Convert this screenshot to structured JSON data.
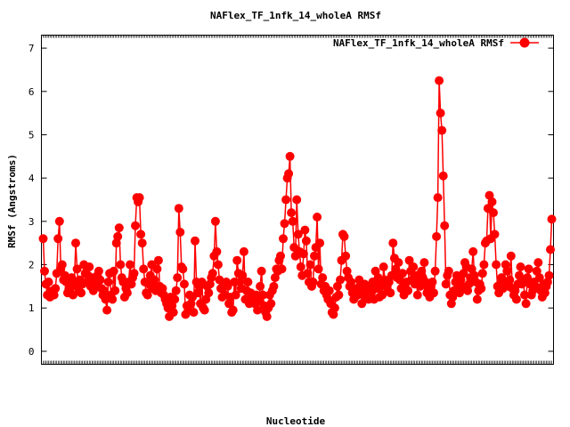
{
  "chart_data": {
    "type": "line",
    "title": "NAFlex_TF_1nfk_14_wholeA RMSf",
    "xlabel": "Nucleotide",
    "ylabel": "RMSf (Angstroms)",
    "ylim": [
      -0.3,
      7.3
    ],
    "yticks": [
      0,
      1,
      2,
      3,
      4,
      5,
      6,
      7
    ],
    "grid": false,
    "legend_position": "top-right",
    "series": [
      {
        "name": "NAFlex_TF_1nfk_14_wholeA RMSf",
        "color": "#ff0000",
        "marker": "circle",
        "values": [
          2.6,
          1.85,
          1.55,
          1.3,
          1.6,
          1.25,
          1.35,
          1.4,
          1.3,
          1.45,
          1.8,
          2.6,
          3.0,
          1.9,
          2.0,
          1.65,
          1.75,
          1.6,
          1.35,
          1.45,
          1.55,
          1.7,
          1.3,
          1.6,
          2.5,
          1.9,
          1.45,
          1.65,
          1.35,
          1.55,
          2.0,
          1.8,
          1.6,
          1.75,
          1.95,
          1.5,
          1.7,
          1.4,
          1.6,
          1.55,
          1.75,
          1.85,
          1.65,
          1.45,
          1.3,
          1.4,
          1.2,
          0.95,
          1.6,
          1.8,
          1.3,
          1.2,
          1.85,
          1.4,
          2.5,
          2.65,
          2.85,
          2.0,
          1.7,
          1.6,
          1.25,
          1.45,
          1.35,
          1.6,
          2.0,
          1.55,
          1.7,
          1.8,
          2.9,
          3.55,
          3.45,
          3.55,
          2.7,
          2.5,
          1.9,
          1.6,
          1.35,
          1.3,
          1.55,
          1.75,
          2.0,
          1.45,
          1.65,
          1.4,
          1.9,
          2.1,
          1.5,
          1.35,
          1.45,
          1.3,
          1.2,
          1.1,
          1.0,
          0.8,
          1.25,
          1.05,
          0.9,
          1.2,
          1.4,
          1.7,
          3.3,
          2.75,
          1.95,
          1.9,
          1.55,
          0.85,
          1.05,
          0.95,
          1.3,
          1.1,
          1.25,
          0.9,
          2.55,
          1.6,
          1.35,
          1.5,
          1.1,
          1.6,
          1.0,
          0.95,
          1.2,
          1.5,
          1.35,
          1.55,
          1.7,
          1.8,
          2.2,
          3.0,
          2.3,
          2.0,
          1.65,
          1.45,
          1.25,
          1.55,
          1.3,
          1.6,
          1.5,
          1.1,
          1.25,
          0.9,
          0.95,
          1.6,
          1.3,
          2.1,
          1.8,
          1.6,
          1.45,
          1.75,
          2.3,
          1.2,
          1.4,
          1.6,
          1.1,
          1.35,
          1.25,
          1.2,
          1.1,
          1.3,
          0.95,
          1.15,
          1.5,
          1.85,
          1.3,
          1.05,
          0.9,
          0.8,
          1.0,
          1.3,
          1.1,
          1.4,
          1.5,
          1.7,
          1.9,
          1.85,
          2.1,
          2.2,
          1.9,
          2.6,
          2.95,
          3.5,
          4.0,
          4.1,
          4.5,
          3.2,
          3.0,
          2.4,
          2.2,
          3.5,
          2.7,
          2.3,
          1.95,
          1.75,
          2.25,
          2.8,
          2.55,
          1.8,
          1.6,
          2.0,
          1.5,
          1.6,
          2.2,
          2.4,
          3.1,
          1.9,
          2.5,
          1.55,
          1.7,
          1.4,
          1.5,
          1.3,
          1.2,
          1.4,
          1.1,
          0.9,
          0.85,
          1.0,
          1.25,
          1.5,
          1.3,
          1.65,
          2.1,
          2.7,
          2.65,
          2.2,
          1.85,
          1.7,
          1.5,
          1.6,
          1.35,
          1.2,
          1.25,
          1.45,
          1.3,
          1.65,
          1.55,
          1.1,
          1.4,
          1.55,
          1.25,
          1.4,
          1.2,
          1.5,
          1.35,
          1.6,
          1.2,
          1.85,
          1.45,
          1.7,
          1.25,
          1.55,
          1.3,
          1.95,
          1.65,
          1.5,
          1.4,
          1.6,
          1.35,
          1.75,
          2.5,
          2.15,
          1.9,
          1.7,
          2.05,
          1.65,
          1.45,
          1.8,
          1.3,
          1.55,
          1.6,
          1.4,
          2.1,
          1.85,
          1.65,
          1.95,
          1.55,
          1.75,
          1.3,
          1.6,
          1.5,
          1.85,
          1.7,
          2.05,
          1.6,
          1.35,
          1.45,
          1.25,
          1.5,
          1.6,
          1.35,
          1.85,
          2.65,
          3.55,
          6.25,
          5.5,
          5.1,
          4.05,
          2.9,
          1.55,
          1.75,
          1.85,
          1.3,
          1.1,
          1.25,
          1.4,
          1.6,
          1.75,
          1.5,
          1.35,
          1.65,
          1.5,
          1.8,
          2.05,
          1.95,
          1.4,
          1.55,
          1.7,
          1.9,
          2.3,
          1.75,
          1.6,
          1.2,
          1.4,
          1.55,
          1.45,
          1.8,
          2.0,
          2.5,
          2.55,
          3.3,
          3.6,
          2.6,
          3.45,
          3.2,
          2.7,
          2.0,
          1.5,
          1.35,
          1.55,
          1.7,
          1.45,
          1.6,
          2.0,
          1.85,
          1.5,
          1.65,
          2.2,
          1.45,
          1.3,
          1.4,
          1.2,
          1.55,
          1.75,
          1.95,
          1.55,
          1.65,
          1.3,
          1.1,
          1.7,
          1.9,
          1.55,
          1.3,
          1.4,
          1.6,
          1.5,
          1.85,
          2.05,
          1.7,
          1.4,
          1.25,
          1.55,
          1.35,
          1.5,
          1.6,
          1.75,
          2.35,
          3.05
        ]
      }
    ]
  }
}
